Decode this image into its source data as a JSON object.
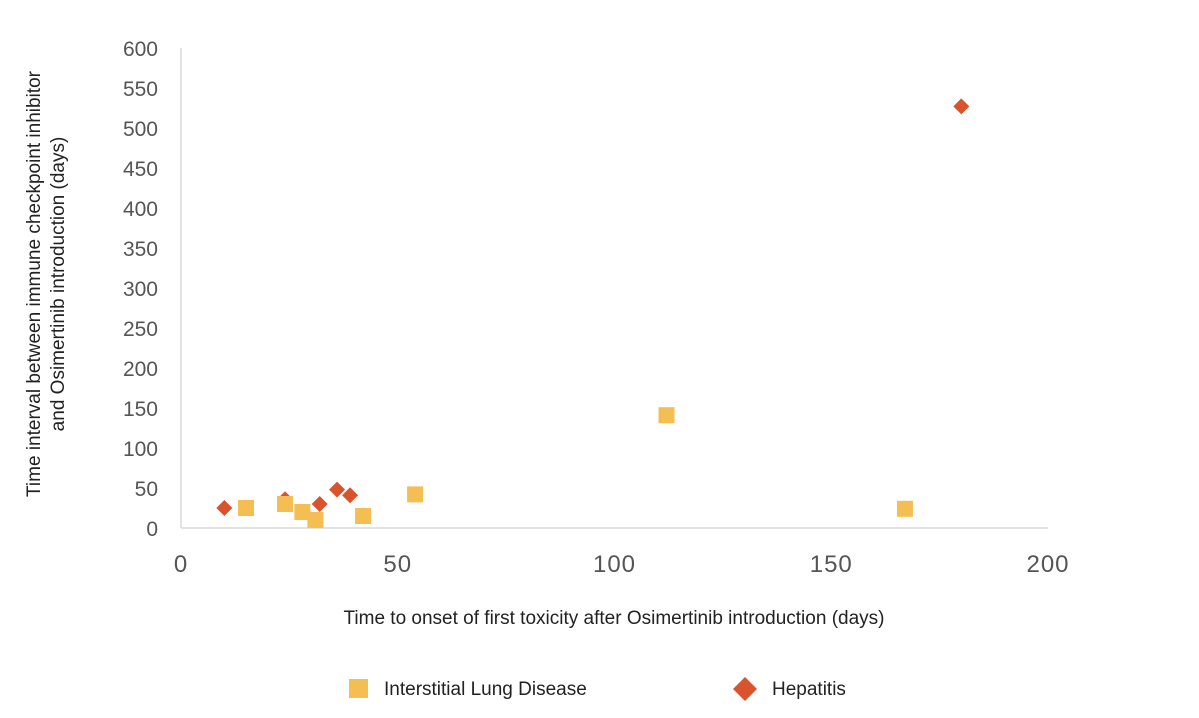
{
  "chart_data": {
    "type": "scatter",
    "title": "",
    "xlabel": "Time to onset of first toxicity after Osimertinib introduction (days)",
    "ylabel_lines": [
      "Time interval between immune checkpoint inhibitor",
      "and Osimertinib introduction (days)"
    ],
    "xlim": [
      0,
      200
    ],
    "ylim": [
      0,
      600
    ],
    "x_ticks": [
      0,
      50,
      100,
      150,
      200
    ],
    "y_ticks": [
      0,
      50,
      100,
      150,
      200,
      250,
      300,
      350,
      400,
      450,
      500,
      550,
      600
    ],
    "grid": false,
    "legend_position": "bottom",
    "series": [
      {
        "name": "Interstitial Lung Disease",
        "marker": "square",
        "color": "#F5BE52",
        "points": [
          {
            "x": 15,
            "y": 25
          },
          {
            "x": 24,
            "y": 30
          },
          {
            "x": 28,
            "y": 20
          },
          {
            "x": 31,
            "y": 10
          },
          {
            "x": 42,
            "y": 15
          },
          {
            "x": 54,
            "y": 42
          },
          {
            "x": 112,
            "y": 141
          },
          {
            "x": 167,
            "y": 24
          }
        ]
      },
      {
        "name": "Hepatitis",
        "marker": "diamond",
        "color": "#D9542C",
        "points": [
          {
            "x": 10,
            "y": 25
          },
          {
            "x": 24,
            "y": 36
          },
          {
            "x": 32,
            "y": 30
          },
          {
            "x": 36,
            "y": 48
          },
          {
            "x": 39,
            "y": 41
          },
          {
            "x": 180,
            "y": 527
          }
        ]
      }
    ]
  }
}
